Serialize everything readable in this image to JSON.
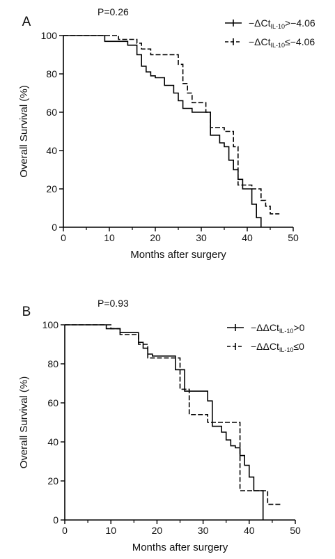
{
  "chart_data": [
    {
      "type": "line",
      "panel_label": "A",
      "p_value": "P=0.26",
      "xlabel": "Months after surgery",
      "ylabel": "Overall Survival (%)",
      "xlim": [
        0,
        50
      ],
      "ylim": [
        0,
        100
      ],
      "xticks": [
        "0",
        "10",
        "20",
        "30",
        "40",
        "50"
      ],
      "yticks": [
        "0",
        "20",
        "40",
        "60",
        "80",
        "100"
      ],
      "grid": false,
      "legend_position": "top-right",
      "series": [
        {
          "name": {
            "pre": "−ΔCt",
            "sub": "IL-10",
            "post": ">−4.06"
          },
          "style": "solid",
          "x": [
            0,
            9,
            9,
            14,
            14,
            16,
            16,
            17,
            17,
            18,
            18,
            19,
            19,
            20,
            20,
            22,
            22,
            24,
            24,
            25,
            25,
            26,
            26,
            28,
            28,
            29,
            29,
            32,
            32,
            34,
            34,
            35,
            35,
            36,
            36,
            37,
            37,
            38,
            38,
            39,
            39,
            41,
            41,
            42,
            42,
            43,
            43
          ],
          "y": [
            100,
            100,
            97,
            97,
            95,
            95,
            90,
            90,
            84,
            84,
            81,
            81,
            79,
            79,
            78,
            78,
            74,
            74,
            70,
            70,
            66,
            66,
            62,
            62,
            60,
            60,
            60,
            60,
            48,
            48,
            44,
            44,
            42,
            42,
            35,
            35,
            30,
            30,
            25,
            25,
            20,
            20,
            12,
            12,
            5,
            5,
            0
          ]
        },
        {
          "name": {
            "pre": "−ΔCt",
            "sub": "IL-10",
            "post": "≤−4.06"
          },
          "style": "dashed",
          "x": [
            0,
            12,
            12,
            16,
            16,
            17,
            17,
            19,
            19,
            25,
            25,
            26,
            26,
            27,
            27,
            28,
            28,
            31,
            31,
            32,
            32,
            35,
            35,
            37,
            37,
            38,
            38,
            41,
            41,
            43,
            43,
            44,
            44,
            45,
            45,
            47
          ],
          "y": [
            100,
            100,
            98,
            98,
            96,
            96,
            93,
            93,
            90,
            90,
            85,
            85,
            75,
            75,
            70,
            70,
            65,
            65,
            60,
            60,
            52,
            52,
            50,
            50,
            42,
            42,
            22,
            22,
            20,
            20,
            14,
            14,
            11,
            11,
            7,
            7
          ]
        }
      ]
    },
    {
      "type": "line",
      "panel_label": "B",
      "p_value": "P=0.93",
      "xlabel": "Months after surgery",
      "ylabel": "Overall Survival (%)",
      "xlim": [
        0,
        50
      ],
      "ylim": [
        0,
        100
      ],
      "xticks": [
        "0",
        "10",
        "20",
        "30",
        "40",
        "50"
      ],
      "yticks": [
        "0",
        "20",
        "40",
        "60",
        "80",
        "100"
      ],
      "grid": false,
      "legend_position": "top-right",
      "series": [
        {
          "name": {
            "pre": "−ΔΔCt",
            "sub": "IL-10",
            "post": ">0"
          },
          "style": "solid",
          "x": [
            0,
            9,
            9,
            12,
            12,
            16,
            16,
            17,
            17,
            18,
            18,
            19,
            19,
            24,
            24,
            26,
            26,
            30,
            30,
            31,
            31,
            32,
            32,
            34,
            34,
            35,
            35,
            36,
            36,
            37,
            37,
            38,
            38,
            39,
            39,
            40,
            40,
            41,
            41,
            43,
            43
          ],
          "y": [
            100,
            100,
            98,
            98,
            96,
            96,
            91,
            91,
            88,
            88,
            85,
            85,
            84,
            84,
            77,
            77,
            66,
            66,
            66,
            66,
            61,
            61,
            48,
            48,
            45,
            45,
            41,
            41,
            38,
            38,
            37,
            37,
            33,
            33,
            28,
            28,
            22,
            22,
            15,
            15,
            0
          ]
        },
        {
          "name": {
            "pre": "−ΔΔCt",
            "sub": "IL-10",
            "post": "≤0"
          },
          "style": "dashed",
          "x": [
            0,
            10,
            10,
            12,
            12,
            16,
            16,
            18,
            18,
            20,
            20,
            25,
            25,
            27,
            27,
            28,
            28,
            31,
            31,
            32,
            32,
            36,
            36,
            38,
            38,
            44,
            44,
            45,
            45,
            47
          ],
          "y": [
            100,
            100,
            98,
            98,
            95,
            95,
            90,
            90,
            83,
            83,
            83,
            83,
            67,
            67,
            54,
            54,
            54,
            54,
            50,
            50,
            50,
            50,
            50,
            50,
            15,
            15,
            8,
            8,
            8,
            8
          ]
        }
      ]
    }
  ]
}
